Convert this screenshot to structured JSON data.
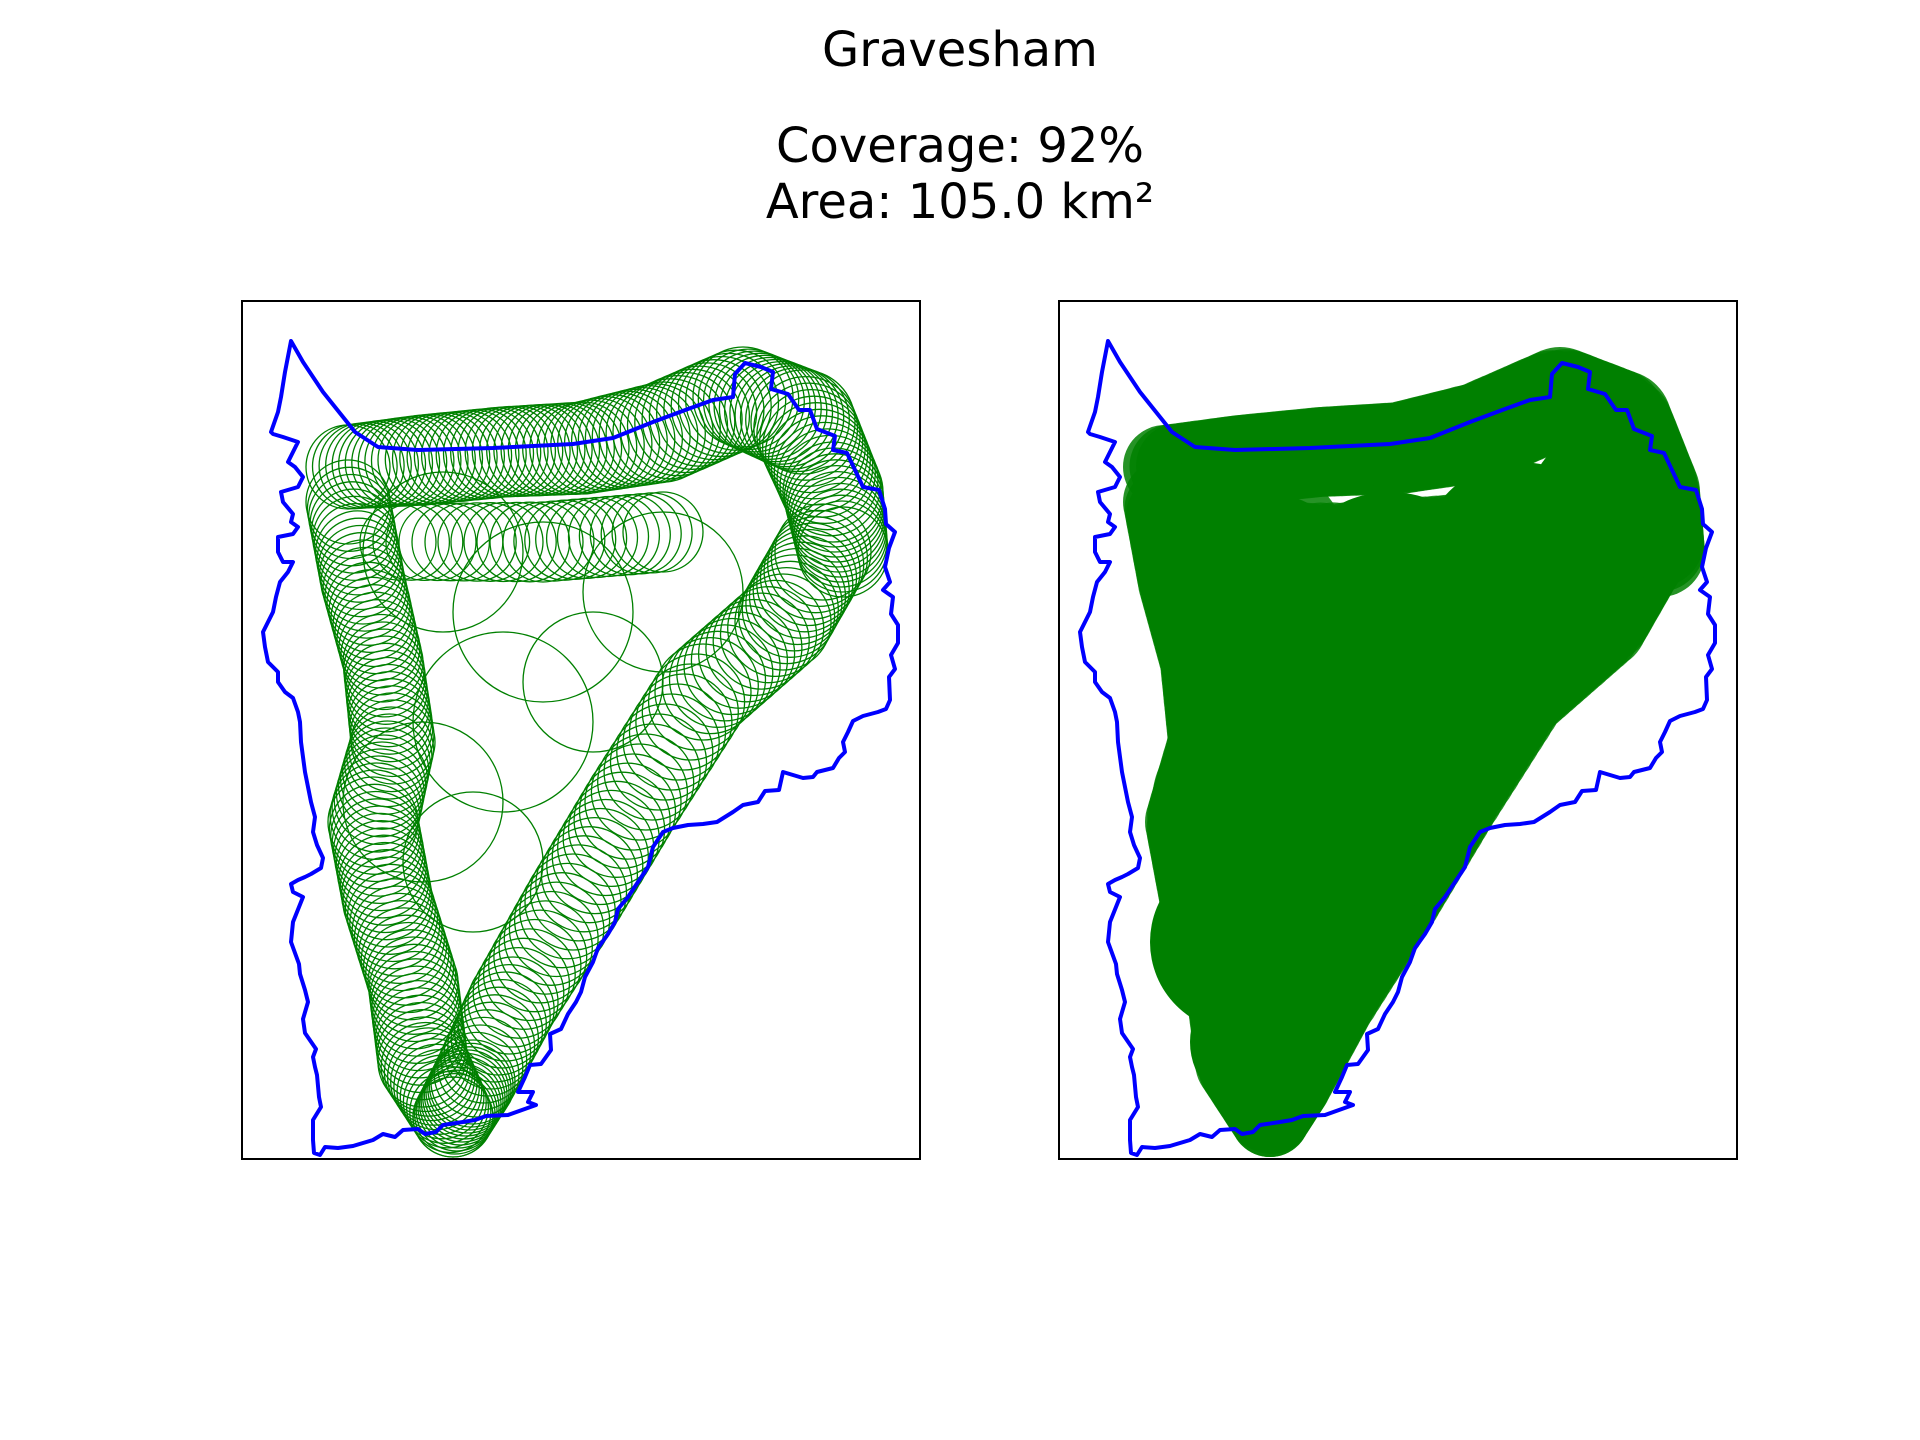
{
  "figure": {
    "title": "Gravesham",
    "coverage_text": "Coverage: 92%",
    "area_text": "Area: 105.0 km²"
  },
  "colors": {
    "boundary": "#0000ff",
    "coverage": "#008000",
    "frame": "#000000",
    "background": "#ffffff"
  },
  "panels": [
    {
      "id": "left",
      "style": "circle-outlines"
    },
    {
      "id": "right",
      "style": "filled-circles"
    }
  ],
  "chart_data": {
    "type": "map",
    "region": "Gravesham",
    "coverage_percent": 92,
    "area_km2": 105.0,
    "grid": false,
    "axes_visible": false
  }
}
